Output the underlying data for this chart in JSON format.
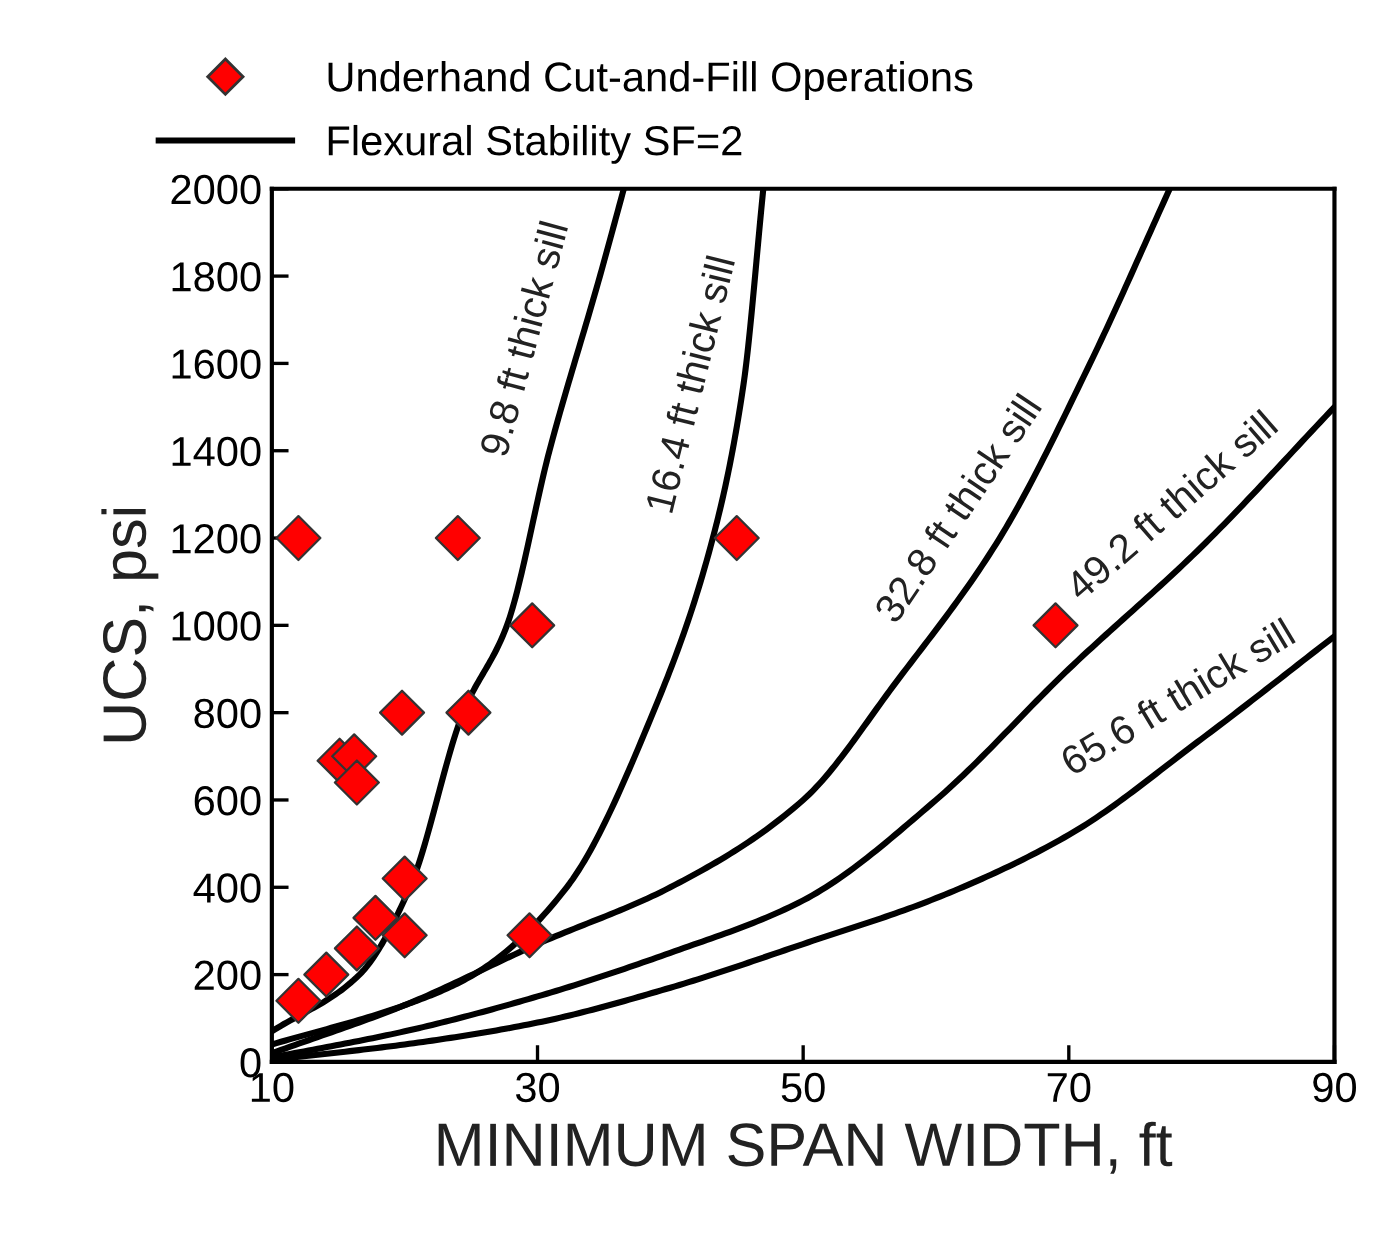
{
  "chart_data": {
    "type": "scatter",
    "xlabel": "MINIMUM SPAN WIDTH, ft",
    "ylabel": "UCS, psi",
    "xlim": [
      10,
      90
    ],
    "xticks": [
      10,
      30,
      50,
      70,
      90
    ],
    "ylim": [
      0,
      2000
    ],
    "yticks": [
      0,
      200,
      400,
      600,
      800,
      1000,
      1200,
      1400,
      1600,
      1800,
      2000
    ],
    "grid": false,
    "legend": "top",
    "series": [
      {
        "name": "Underhand Cut-and-Fill Operations",
        "marker": "diamond",
        "color": "#ff0000",
        "x": [
          12,
          24,
          45,
          29.6,
          69,
          19.8,
          24.8,
          15.1,
          16.2,
          16.4,
          20,
          17.8,
          20,
          29.4,
          16.4,
          14.1,
          12
        ],
        "values": [
          1200,
          1200,
          1200,
          1000,
          1000,
          800,
          800,
          690,
          700,
          640,
          420,
          330,
          290,
          290,
          260,
          200,
          140
        ]
      },
      {
        "name": "Flexural Stability SF=2",
        "type": "line",
        "color": "#000000",
        "x": [
          10,
          16.6,
          20.4,
          24.4,
          27.7,
          30.9,
          34.7,
          36.5
        ],
        "values": [
          70,
          200,
          400,
          800,
          1000,
          1400,
          1800,
          2000
        ]
      },
      {
        "type": "line",
        "color": "#000000",
        "x": [
          10,
          20,
          25.2,
          32.2,
          38.7,
          43.2,
          45.5,
          47.0
        ],
        "values": [
          40,
          130,
          200,
          400,
          800,
          1200,
          1550,
          2000
        ]
      },
      {
        "type": "line",
        "color": "#000000",
        "x": [
          10,
          20,
          30,
          40,
          50,
          57,
          64.8,
          71.6,
          77.6
        ],
        "values": [
          20,
          130,
          270,
          400,
          600,
          870,
          1200,
          1600,
          2000
        ]
      },
      {
        "type": "line",
        "color": "#000000",
        "x": [
          10,
          20,
          30,
          40,
          50,
          60,
          70,
          80,
          90
        ],
        "values": [
          10,
          70,
          150,
          250,
          370,
          600,
          900,
          1180,
          1500
        ]
      },
      {
        "type": "line",
        "color": "#000000",
        "x": [
          10,
          20,
          30,
          40,
          50,
          60,
          70,
          80,
          90
        ],
        "values": [
          5,
          40,
          90,
          170,
          270,
          375,
          520,
          740,
          975
        ]
      }
    ],
    "annotations": [
      {
        "text": "9.8 ft thick sill",
        "x": 30.9,
        "y": 1400
      },
      {
        "text": "16.4 ft thick sill",
        "x": 45.5,
        "y": 1550
      },
      {
        "text": "32.8 ft thick sill",
        "x": 64.8,
        "y": 1200
      },
      {
        "text": "49.2 ft thick sill",
        "x": 80,
        "y": 1180
      },
      {
        "text": "65.6 ft thick sill",
        "x": 80,
        "y": 740
      }
    ]
  }
}
